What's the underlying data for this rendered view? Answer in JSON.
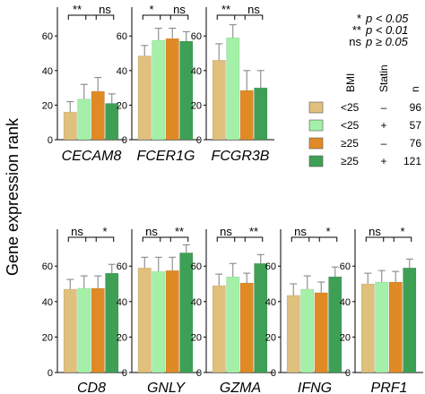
{
  "figure": {
    "ylabel": "Gene expression rank"
  },
  "significance_key": [
    {
      "symbol": "*",
      "text": "p < 0.05"
    },
    {
      "symbol": "**",
      "text": "p < 0.01"
    },
    {
      "symbol": "ns",
      "text": "p ≥ 0.05"
    }
  ],
  "legend": {
    "headers": {
      "bmi": "BMI",
      "statin": "Statin",
      "n": "n"
    },
    "rows": [
      {
        "bmi": "<25",
        "statin": "–",
        "n": "96",
        "color": "#dfc07c"
      },
      {
        "bmi": "<25",
        "statin": "+",
        "n": "57",
        "color": "#a4f0a8"
      },
      {
        "bmi": "≥25",
        "statin": "–",
        "n": "76",
        "color": "#e08a26"
      },
      {
        "bmi": "≥25",
        "statin": "+",
        "n": "121",
        "color": "#3ea055"
      }
    ]
  },
  "colors": {
    "bmi_lt25_no_statin": "#dfc07c",
    "bmi_lt25_statin": "#a4f0a8",
    "bmi_ge25_no_statin": "#e08a26",
    "bmi_ge25_statin": "#3ea055",
    "error_bar": "#888888"
  },
  "chart_data": [
    {
      "type": "bar",
      "title": "CECAM8",
      "yticks": [
        0,
        20,
        40,
        60
      ],
      "ylim": [
        0,
        75
      ],
      "values": [
        16,
        23.5,
        28,
        21
      ],
      "errors": [
        6,
        8.5,
        8,
        5.5
      ],
      "significance": [
        "**",
        "ns"
      ]
    },
    {
      "type": "bar",
      "title": "FCER1G",
      "yticks": [
        0,
        20,
        40,
        60
      ],
      "ylim": [
        0,
        75
      ],
      "values": [
        48.5,
        57.5,
        58.5,
        57
      ],
      "errors": [
        6,
        7,
        6,
        5.5
      ],
      "significance": [
        "*",
        "ns"
      ]
    },
    {
      "type": "bar",
      "title": "FCGR3B",
      "yticks": [
        0,
        20,
        40,
        60
      ],
      "ylim": [
        0,
        75
      ],
      "values": [
        46,
        59,
        28.5,
        30
      ],
      "errors": [
        9.5,
        7.5,
        11.5,
        10
      ],
      "significance": [
        "**",
        "ns"
      ]
    },
    {
      "type": "bar",
      "title": "CD8",
      "yticks": [
        0,
        20,
        40,
        60
      ],
      "ylim": [
        0,
        78
      ],
      "values": [
        47,
        47.5,
        47.5,
        56
      ],
      "errors": [
        5.5,
        7,
        7,
        5
      ],
      "significance": [
        "ns",
        "*"
      ]
    },
    {
      "type": "bar",
      "title": "GNLY",
      "yticks": [
        0,
        20,
        40,
        60
      ],
      "ylim": [
        0,
        78
      ],
      "values": [
        59,
        57,
        57.5,
        67.5
      ],
      "errors": [
        6,
        8,
        7.5,
        4.5
      ],
      "significance": [
        "ns",
        "**"
      ]
    },
    {
      "type": "bar",
      "title": "GZMA",
      "yticks": [
        0,
        20,
        40,
        60
      ],
      "ylim": [
        0,
        78
      ],
      "values": [
        49,
        54,
        50.5,
        61.5
      ],
      "errors": [
        6.5,
        7.5,
        5.5,
        5
      ],
      "significance": [
        "ns",
        "**"
      ]
    },
    {
      "type": "bar",
      "title": "IFNG",
      "yticks": [
        0,
        20,
        40,
        60
      ],
      "ylim": [
        0,
        78
      ],
      "values": [
        43.5,
        47,
        45,
        54
      ],
      "errors": [
        6.5,
        7.5,
        6,
        5.5
      ],
      "significance": [
        "ns",
        "*"
      ]
    },
    {
      "type": "bar",
      "title": "PRF1",
      "yticks": [
        0,
        20,
        40,
        60
      ],
      "ylim": [
        0,
        78
      ],
      "values": [
        50,
        51,
        51,
        59
      ],
      "errors": [
        6,
        6.5,
        6,
        5
      ],
      "significance": [
        "ns",
        "*"
      ]
    }
  ]
}
